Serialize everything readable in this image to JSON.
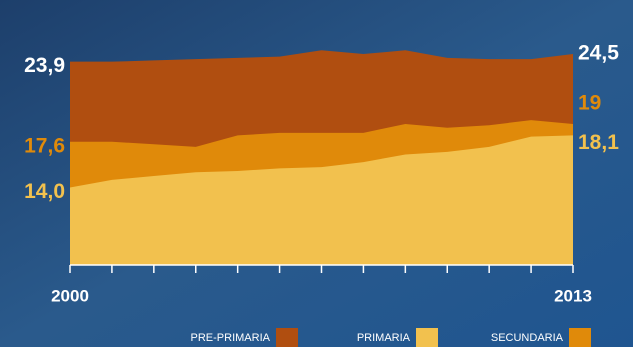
{
  "chart_data": {
    "type": "area",
    "categories": [
      "2000",
      null,
      null,
      null,
      null,
      null,
      null,
      null,
      null,
      null,
      null,
      null,
      "2013"
    ],
    "series": [
      {
        "name": "PRE-PRIMARIA",
        "color": "#b04e10",
        "values": [
          23.9,
          23.9,
          24.0,
          24.1,
          24.2,
          24.3,
          24.8,
          24.5,
          24.8,
          24.2,
          24.1,
          24.1,
          24.5
        ],
        "value_labels": [
          "23,9",
          null,
          null,
          null,
          null,
          null,
          null,
          null,
          null,
          null,
          null,
          null,
          "24,5"
        ]
      },
      {
        "name": "SECUNDARIA",
        "color": "#e08a0a",
        "values": [
          17.6,
          17.6,
          17.4,
          17.2,
          18.1,
          18.3,
          18.3,
          18.3,
          19.0,
          18.7,
          18.9,
          19.3,
          19.0
        ],
        "value_labels": [
          "17,6",
          null,
          null,
          null,
          null,
          null,
          null,
          null,
          null,
          null,
          null,
          null,
          "19"
        ]
      },
      {
        "name": "PRIMARIA",
        "color": "#f2c14e",
        "values": [
          14.0,
          14.6,
          14.9,
          15.2,
          15.3,
          15.5,
          15.6,
          16.0,
          16.6,
          16.8,
          17.2,
          18.0,
          18.1
        ],
        "value_labels": [
          "14,0",
          null,
          null,
          null,
          null,
          null,
          null,
          null,
          null,
          null,
          null,
          null,
          "18,1"
        ]
      }
    ],
    "legend_order": [
      0,
      2,
      1
    ],
    "ylim": [
      7.9,
      26.0
    ]
  }
}
